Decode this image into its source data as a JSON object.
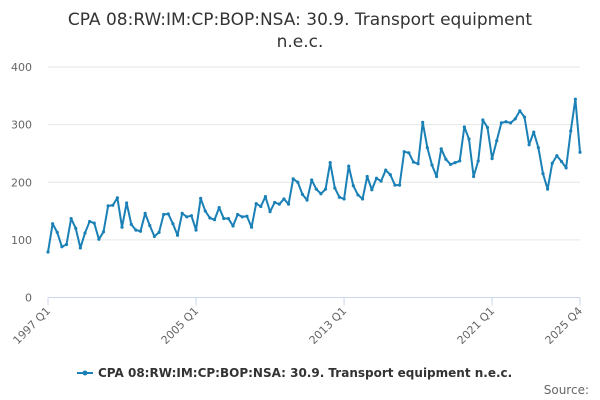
{
  "chart_data": {
    "type": "line",
    "title_line1": "CPA 08:RW:IM:CP:BOP:NSA: 30.9. Transport equipment",
    "title_line2": "n.e.c.",
    "series_name": "CPA 08:RW:IM:CP:BOP:NSA: 30.9. Transport equipment n.e.c.",
    "source_label": "Source:",
    "line_color": "#1a80b6",
    "ylim": [
      0,
      400
    ],
    "y_ticks": [
      "0",
      "100",
      "200",
      "300",
      "400"
    ],
    "x_tick_labels": [
      "1997 Q1",
      "2005 Q1",
      "2013 Q1",
      "2021 Q1",
      "2025 Q4"
    ],
    "x_tick_index": [
      0,
      32,
      64,
      96,
      115
    ],
    "start": "1997 Q1",
    "end": "2025 Q4",
    "values": [
      79,
      128,
      113,
      88,
      92,
      137,
      120,
      86,
      112,
      132,
      129,
      101,
      114,
      159,
      160,
      173,
      122,
      164,
      127,
      117,
      115,
      146,
      125,
      106,
      113,
      144,
      145,
      128,
      108,
      146,
      140,
      142,
      117,
      172,
      150,
      138,
      135,
      156,
      137,
      137,
      124,
      144,
      140,
      141,
      122,
      163,
      158,
      175,
      149,
      165,
      162,
      171,
      162,
      206,
      200,
      179,
      169,
      204,
      188,
      180,
      188,
      234,
      190,
      174,
      171,
      228,
      194,
      178,
      171,
      210,
      187,
      207,
      202,
      221,
      213,
      195,
      195,
      253,
      251,
      235,
      232,
      304,
      260,
      230,
      210,
      258,
      240,
      231,
      234,
      237,
      296,
      275,
      210,
      237,
      308,
      295,
      241,
      272,
      303,
      305,
      303,
      310,
      324,
      313,
      265,
      287,
      260,
      215,
      188,
      233,
      246,
      236,
      225,
      289,
      344,
      252
    ]
  }
}
